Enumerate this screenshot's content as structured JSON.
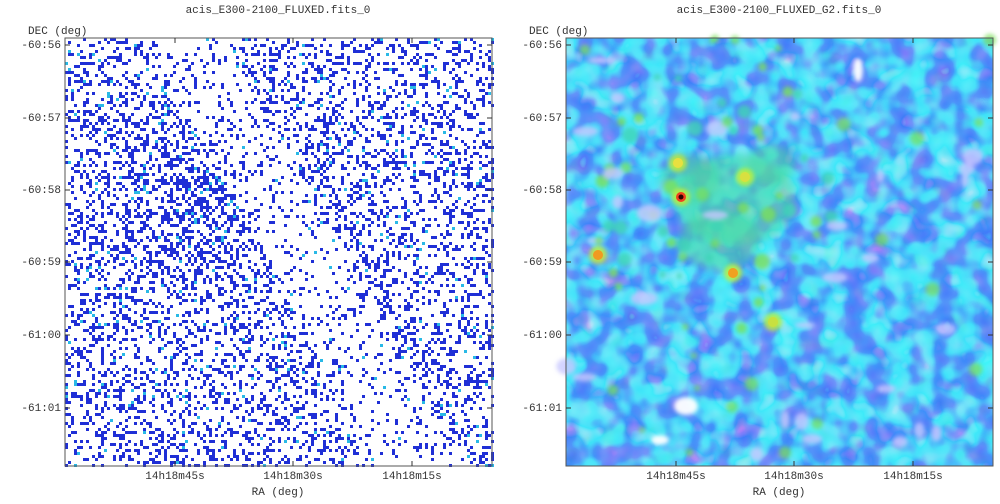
{
  "panels": [
    {
      "title": "acis_E300-2100_FLUXED.fits_0",
      "y_axis_label": "DEC (deg)",
      "x_axis_label": "RA (deg)",
      "y_tick_labels": [
        "-60:56",
        "-60:57",
        "-60:58",
        "-60:59",
        "-61:00",
        "-61:01"
      ],
      "x_tick_labels": [
        "14h18m45s",
        "14h18m30s",
        "14h18m15s"
      ]
    },
    {
      "title": "acis_E300-2100_FLUXED_G2.fits_0",
      "y_axis_label": "DEC (deg)",
      "x_axis_label": "RA (deg)",
      "y_tick_labels": [
        "-60:56",
        "-60:57",
        "-60:58",
        "-60:59",
        "-61:00",
        "-61:01"
      ],
      "x_tick_labels": [
        "14h18m45s",
        "14h18m30s",
        "14h18m15s"
      ]
    }
  ]
}
